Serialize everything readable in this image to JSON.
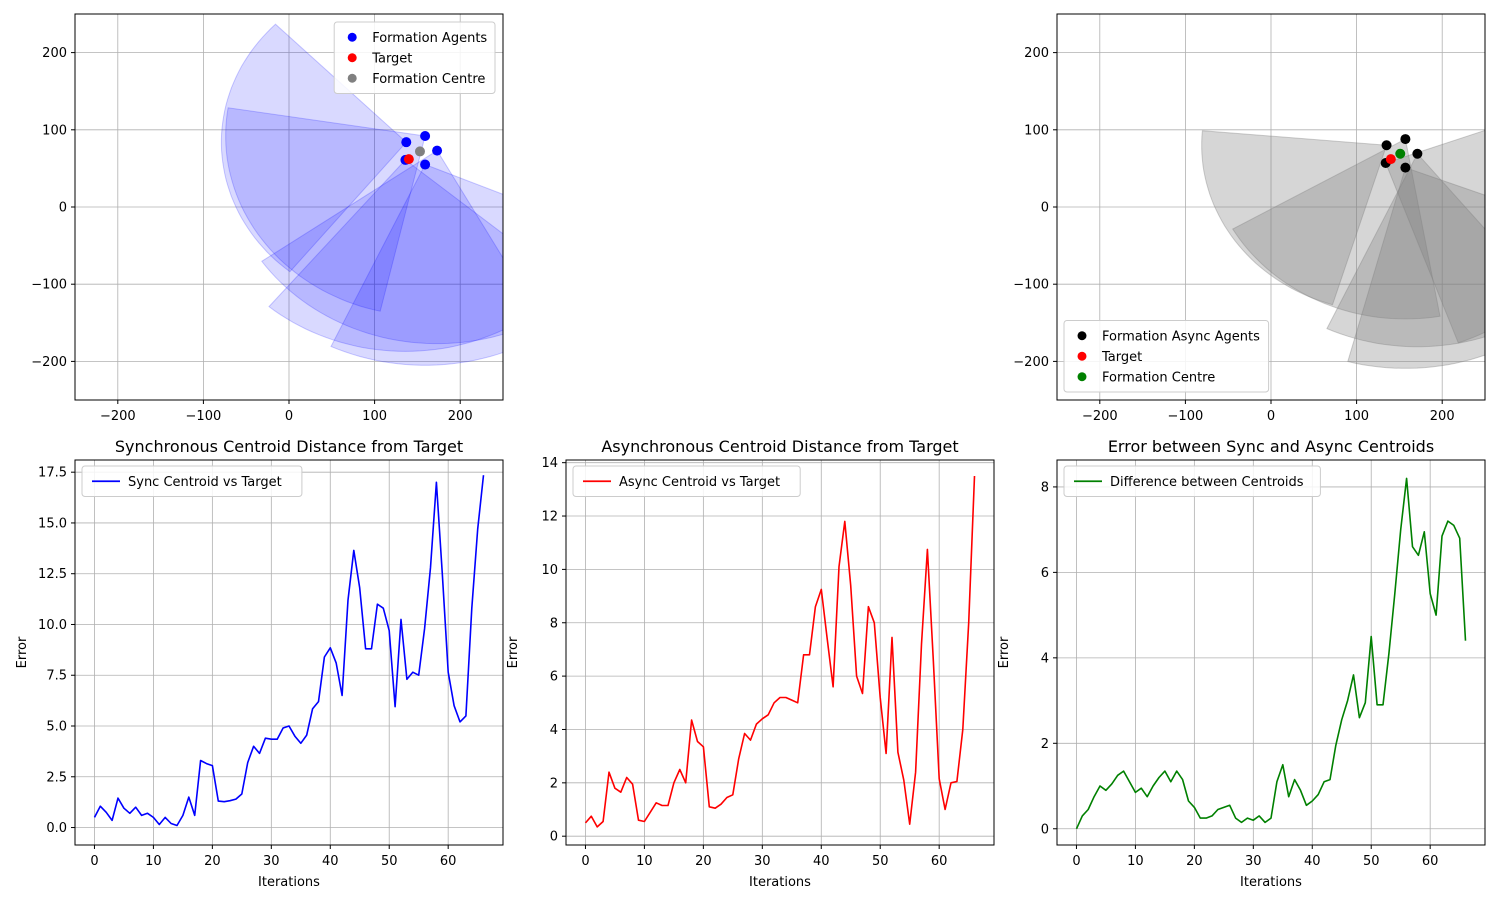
{
  "chart_data": [
    {
      "type": "scatter",
      "xlim": [
        -250,
        250
      ],
      "ylim": [
        -250,
        250
      ],
      "xticks": [
        -200,
        -100,
        0,
        100,
        200
      ],
      "yticks": [
        -200,
        -100,
        0,
        100,
        200
      ],
      "grid": true,
      "legend_position": "top-right",
      "series": [
        {
          "name": "Formation Agents",
          "color": "#0000ff",
          "points": [
            [
              137,
              84
            ],
            [
              159,
              92
            ],
            [
              173,
              73
            ],
            [
              159,
              55
            ],
            [
              136,
              61
            ]
          ]
        },
        {
          "name": "Target",
          "color": "#ff0000",
          "points": [
            [
              140,
              62
            ]
          ]
        },
        {
          "name": "Formation Centre",
          "color": "#808080",
          "points": [
            [
              153,
              72
            ]
          ]
        }
      ],
      "sectors": {
        "color": "#0000ff",
        "opacity": 0.15,
        "items": [
          {
            "cx": 137,
            "cy": 84,
            "r": 216,
            "start": 135,
            "end": 232
          },
          {
            "cx": 159,
            "cy": 92,
            "r": 233,
            "start": 171,
            "end": 258
          },
          {
            "cx": 173,
            "cy": 73,
            "r": 250,
            "start": 215,
            "end": 300
          },
          {
            "cx": 159,
            "cy": 55,
            "r": 260,
            "start": 245,
            "end": 338
          },
          {
            "cx": 136,
            "cy": 61,
            "r": 248,
            "start": 230,
            "end": 320
          }
        ]
      }
    },
    {
      "type": "scatter",
      "xlim": [
        -250,
        250
      ],
      "ylim": [
        -250,
        250
      ],
      "xticks": [
        -200,
        -100,
        0,
        100,
        200
      ],
      "yticks": [
        -200,
        -100,
        0,
        100,
        200
      ],
      "grid": true,
      "legend_position": "bottom-left",
      "series": [
        {
          "name": "Formation Async Agents",
          "color": "#000000",
          "points": [
            [
              135,
              80
            ],
            [
              157,
              88
            ],
            [
              171,
              69
            ],
            [
              157,
              51
            ],
            [
              134,
              57
            ]
          ]
        },
        {
          "name": "Target",
          "color": "#ff0000",
          "points": [
            [
              140,
              62
            ]
          ]
        },
        {
          "name": "Formation Centre",
          "color": "#008000",
          "points": [
            [
              151,
              69
            ]
          ]
        }
      ],
      "sectors": {
        "color": "#808080",
        "opacity": 0.32,
        "items": [
          {
            "cx": 135,
            "cy": 80,
            "r": 216,
            "start": 175,
            "end": 254
          },
          {
            "cx": 157,
            "cy": 88,
            "r": 233,
            "start": 210,
            "end": 280
          },
          {
            "cx": 171,
            "cy": 69,
            "r": 250,
            "start": 245,
            "end": 310
          },
          {
            "cx": 157,
            "cy": 51,
            "r": 260,
            "start": 255,
            "end": 340
          },
          {
            "cx": 134,
            "cy": 57,
            "r": 248,
            "start": 290,
            "end": 380
          }
        ]
      }
    },
    {
      "type": "line",
      "title": "Synchronous Centroid Distance from Target",
      "xlabel": "Iterations",
      "ylabel": "Error",
      "xlim": [
        -3.3,
        69.3
      ],
      "ylim": [
        -0.86,
        18.1
      ],
      "xticks": [
        0,
        10,
        20,
        30,
        40,
        50,
        60
      ],
      "yticks": [
        0.0,
        2.5,
        5.0,
        7.5,
        10.0,
        12.5,
        15.0,
        17.5
      ],
      "ytick_labels": [
        "0.0",
        "2.5",
        "5.0",
        "7.5",
        "10.0",
        "12.5",
        "15.0",
        "17.5"
      ],
      "grid": true,
      "legend_position": "top-left",
      "series": [
        {
          "name": "Sync Centroid vs Target",
          "color": "#0000ff",
          "x": [
            0,
            1,
            2,
            3,
            4,
            5,
            6,
            7,
            8,
            9,
            10,
            11,
            12,
            13,
            14,
            15,
            16,
            17,
            18,
            19,
            20,
            21,
            22,
            23,
            24,
            25,
            26,
            27,
            28,
            29,
            30,
            31,
            32,
            33,
            34,
            35,
            36,
            37,
            38,
            39,
            40,
            41,
            42,
            43,
            44,
            45,
            46,
            47,
            48,
            49,
            50,
            51,
            52,
            53,
            54,
            55,
            56,
            57,
            58,
            59,
            60,
            61,
            62,
            63,
            64,
            65,
            66
          ],
          "y": [
            0.5,
            1.05,
            0.75,
            0.35,
            1.45,
            0.95,
            0.7,
            1.0,
            0.6,
            0.7,
            0.5,
            0.15,
            0.5,
            0.2,
            0.1,
            0.6,
            1.5,
            0.6,
            3.3,
            3.15,
            3.05,
            1.3,
            1.27,
            1.32,
            1.4,
            1.65,
            3.2,
            4.0,
            3.65,
            4.4,
            4.35,
            4.35,
            4.9,
            5.0,
            4.5,
            4.15,
            4.55,
            5.85,
            6.2,
            8.4,
            8.85,
            8.1,
            6.5,
            11.2,
            13.65,
            11.8,
            8.8,
            8.8,
            11.0,
            10.8,
            9.7,
            5.95,
            10.25,
            7.3,
            7.65,
            7.5,
            9.8,
            12.8,
            17.0,
            12.5,
            7.65,
            6.0,
            5.2,
            5.5,
            10.8,
            14.7,
            17.35
          ]
        }
      ]
    },
    {
      "type": "line",
      "title": "Asynchronous Centroid Distance from Target",
      "xlabel": "Iterations",
      "ylabel": "Error",
      "xlim": [
        -3.3,
        69.3
      ],
      "ylim": [
        -0.33,
        14.1
      ],
      "xticks": [
        0,
        10,
        20,
        30,
        40,
        50,
        60
      ],
      "yticks": [
        0,
        2,
        4,
        6,
        8,
        10,
        12,
        14
      ],
      "ytick_labels": [
        "0",
        "2",
        "4",
        "6",
        "8",
        "10",
        "12",
        "14"
      ],
      "grid": true,
      "legend_position": "top-left",
      "series": [
        {
          "name": "Async Centroid vs Target",
          "color": "#ff0000",
          "x": [
            0,
            1,
            2,
            3,
            4,
            5,
            6,
            7,
            8,
            9,
            10,
            11,
            12,
            13,
            14,
            15,
            16,
            17,
            18,
            19,
            20,
            21,
            22,
            23,
            24,
            25,
            26,
            27,
            28,
            29,
            30,
            31,
            32,
            33,
            34,
            35,
            36,
            37,
            38,
            39,
            40,
            41,
            42,
            43,
            44,
            45,
            46,
            47,
            48,
            49,
            50,
            51,
            52,
            53,
            54,
            55,
            56,
            57,
            58,
            59,
            60,
            61,
            62,
            63,
            64,
            65,
            66
          ],
          "y": [
            0.5,
            0.75,
            0.35,
            0.55,
            2.4,
            1.8,
            1.65,
            2.2,
            1.95,
            0.6,
            0.55,
            0.9,
            1.25,
            1.15,
            1.15,
            2.0,
            2.5,
            2.0,
            4.35,
            3.55,
            3.35,
            1.1,
            1.05,
            1.2,
            1.45,
            1.55,
            2.9,
            3.85,
            3.6,
            4.2,
            4.4,
            4.55,
            5.0,
            5.2,
            5.2,
            5.1,
            5.0,
            6.8,
            6.8,
            8.6,
            9.25,
            7.4,
            5.6,
            10.1,
            11.8,
            9.4,
            6.0,
            5.35,
            8.6,
            8.0,
            5.2,
            3.1,
            7.45,
            3.15,
            2.1,
            0.45,
            2.4,
            7.2,
            10.75,
            6.6,
            2.15,
            1.0,
            2.0,
            2.05,
            4.0,
            8.0,
            13.5
          ]
        }
      ]
    },
    {
      "type": "line",
      "title": "Error between Sync and Async Centroids",
      "xlabel": "Iterations",
      "ylabel": "Error",
      "xlim": [
        -3.3,
        69.3
      ],
      "ylim": [
        -0.38,
        8.63
      ],
      "xticks": [
        0,
        10,
        20,
        30,
        40,
        50,
        60
      ],
      "yticks": [
        0,
        2,
        4,
        6,
        8
      ],
      "ytick_labels": [
        "0",
        "2",
        "4",
        "6",
        "8"
      ],
      "grid": true,
      "legend_position": "top-left",
      "series": [
        {
          "name": "Difference between Centroids",
          "color": "#008000",
          "x": [
            0,
            1,
            2,
            3,
            4,
            5,
            6,
            7,
            8,
            9,
            10,
            11,
            12,
            13,
            14,
            15,
            16,
            17,
            18,
            19,
            20,
            21,
            22,
            23,
            24,
            25,
            26,
            27,
            28,
            29,
            30,
            31,
            32,
            33,
            34,
            35,
            36,
            37,
            38,
            39,
            40,
            41,
            42,
            43,
            44,
            45,
            46,
            47,
            48,
            49,
            50,
            51,
            52,
            53,
            54,
            55,
            56,
            57,
            58,
            59,
            60,
            61,
            62,
            63,
            64,
            65,
            66
          ],
          "y": [
            0.0,
            0.3,
            0.45,
            0.75,
            1.0,
            0.9,
            1.05,
            1.25,
            1.35,
            1.1,
            0.85,
            0.95,
            0.75,
            1.0,
            1.2,
            1.35,
            1.1,
            1.35,
            1.15,
            0.65,
            0.5,
            0.25,
            0.25,
            0.3,
            0.45,
            0.5,
            0.55,
            0.25,
            0.15,
            0.25,
            0.2,
            0.3,
            0.15,
            0.25,
            1.1,
            1.5,
            0.75,
            1.15,
            0.9,
            0.55,
            0.65,
            0.8,
            1.1,
            1.15,
            1.95,
            2.55,
            3.0,
            3.6,
            2.6,
            2.95,
            4.5,
            2.9,
            2.9,
            4.1,
            5.5,
            7.0,
            8.2,
            6.6,
            6.4,
            6.95,
            5.5,
            5.0,
            6.85,
            7.2,
            7.1,
            6.8,
            4.4
          ]
        }
      ]
    }
  ]
}
